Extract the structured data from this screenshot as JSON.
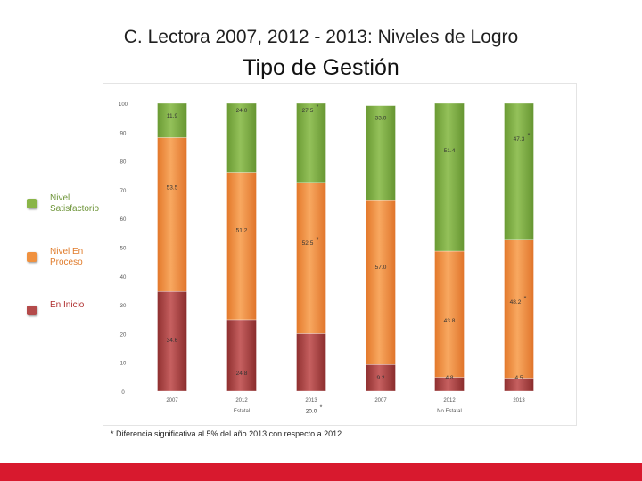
{
  "title_line1": "C. Lectora 2007, 2012 - 2013: Niveles de Logro",
  "title_line2": "Tipo de Gestión",
  "legend": [
    {
      "label": "Nivel Satisfactorio",
      "color": "#8ab548",
      "text_color": "#6d9438"
    },
    {
      "label": "Nivel En Proceso",
      "color": "#f0913f",
      "text_color": "#e07b2a"
    },
    {
      "label": "En Inicio",
      "color": "#b44a4a",
      "text_color": "#b03030"
    }
  ],
  "chart_data": {
    "type": "bar",
    "stacked": true,
    "percent_stacked": true,
    "ylim": [
      0,
      100
    ],
    "yticks": [
      0,
      10,
      20,
      30,
      40,
      50,
      60,
      70,
      80,
      90,
      100
    ],
    "categories": [
      "2007",
      "2012",
      "2013",
      "2007",
      "2012",
      "2013"
    ],
    "groups": [
      {
        "name": "Estatal",
        "categories": [
          "2007",
          "2012",
          "2013"
        ]
      },
      {
        "name": "No Estatal",
        "categories": [
          "2007",
          "2012",
          "2013"
        ]
      }
    ],
    "series": [
      {
        "name": "En Inicio",
        "color": "#b44a4a",
        "values": [
          34.6,
          24.8,
          20.0,
          9.2,
          4.8,
          4.5
        ],
        "labels": [
          "34.6",
          "24.8",
          "20.0",
          "9.2",
          "4.8",
          "4.5"
        ],
        "marked": [
          false,
          false,
          true,
          false,
          false,
          false
        ]
      },
      {
        "name": "Nivel En Proceso",
        "color": "#f0913f",
        "values": [
          53.5,
          51.2,
          52.5,
          57.0,
          43.8,
          48.2
        ],
        "labels": [
          "53.5",
          "51.2",
          "52.5",
          "57.0",
          "43.8",
          "48.2"
        ],
        "marked": [
          false,
          false,
          true,
          false,
          false,
          true
        ]
      },
      {
        "name": "Nivel Satisfactorio",
        "color": "#8ab548",
        "values": [
          11.9,
          24.0,
          27.5,
          33.0,
          51.4,
          47.3
        ],
        "labels": [
          "11.9",
          "24.0",
          "27.5",
          "33.0",
          "51.4",
          "47.3"
        ],
        "marked": [
          false,
          false,
          true,
          false,
          false,
          true
        ]
      }
    ],
    "marker_symbol": "*"
  },
  "footnote": "* Diferencia significativa al 5% del año 2013 con respecto a 2012"
}
